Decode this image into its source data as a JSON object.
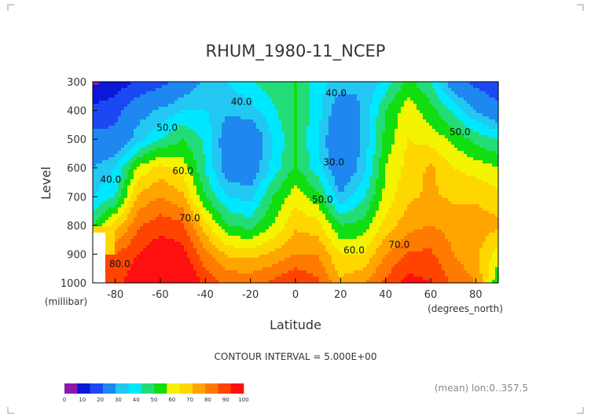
{
  "chart_data": {
    "type": "heatmap",
    "title": "RHUM_1980-11_NCEP",
    "xlabel": "Latitude",
    "xunits": "(degrees_north)",
    "ylabel": "Level",
    "yunits": "(millibar)",
    "xlim": [
      -90,
      90
    ],
    "ylim": [
      1000,
      300
    ],
    "y_axis_inverted": true,
    "xticks": [
      -80,
      -60,
      -40,
      -20,
      0,
      20,
      40,
      60,
      80
    ],
    "xtick_labels": [
      "-80",
      "-60",
      "-40",
      "-20",
      "0",
      "20",
      "40",
      "60",
      "80"
    ],
    "yticks": [
      300,
      400,
      500,
      600,
      700,
      800,
      900,
      1000
    ],
    "ytick_labels": [
      "300",
      "400",
      "500",
      "600",
      "700",
      "800",
      "900",
      "1000"
    ],
    "grid": false,
    "contour_interval_text": "CONTOUR INTERVAL = 5.000E+00",
    "footnote": "(mean) lon:0..357.5",
    "colorbar": {
      "levels": [
        0,
        10,
        20,
        30,
        40,
        50,
        60,
        70,
        80,
        90,
        100
      ],
      "level_labels": [
        "0",
        "10",
        "20",
        "30",
        "40",
        "50",
        "60",
        "70",
        "80",
        "90",
        "100"
      ],
      "colors": [
        "#8c1aa8",
        "#0a18d8",
        "#1c48f4",
        "#1e88f0",
        "#22c8f2",
        "#00e8ff",
        "#22dd77",
        "#11dd11",
        "#f4f400",
        "#ffd700",
        "#ffa500",
        "#ff7a00",
        "#ff4400",
        "#ff1010"
      ]
    },
    "field_levels": [
      5,
      10,
      15,
      20,
      25,
      30,
      35,
      40,
      45,
      50,
      55,
      60,
      65,
      70,
      75,
      80,
      85,
      90,
      95
    ],
    "field_colors": [
      "#8c1aa8",
      "#0a18d8",
      "#0a18d8",
      "#1c48f4",
      "#1c48f4",
      "#1e88f0",
      "#1e88f0",
      "#22c8f2",
      "#00e8ff",
      "#22dd77",
      "#11dd11",
      "#f4f400",
      "#ffd700",
      "#ffa500",
      "#ff7a00",
      "#ff4400",
      "#ff1010",
      "#ff1010",
      "#ff1010",
      "#ff1010"
    ],
    "x": [
      -90,
      -80,
      -70,
      -60,
      -50,
      -40,
      -30,
      -20,
      -10,
      0,
      10,
      20,
      30,
      40,
      50,
      60,
      70,
      80,
      90
    ],
    "y": [
      300,
      400,
      500,
      600,
      700,
      800,
      900,
      1000
    ],
    "z": [
      [
        3,
        8,
        18,
        22,
        30,
        36,
        40,
        44,
        48,
        50,
        42,
        38,
        35,
        42,
        52,
        45,
        30,
        22,
        18
      ],
      [
        18,
        22,
        32,
        36,
        40,
        40,
        36,
        38,
        44,
        50,
        42,
        30,
        36,
        50,
        58,
        52,
        44,
        35,
        28
      ],
      [
        28,
        28,
        38,
        45,
        50,
        44,
        30,
        28,
        40,
        50,
        40,
        26,
        36,
        52,
        60,
        58,
        54,
        48,
        45
      ],
      [
        35,
        40,
        56,
        62,
        58,
        45,
        30,
        30,
        42,
        51,
        42,
        27,
        38,
        55,
        62,
        66,
        60,
        58,
        55
      ],
      [
        40,
        45,
        66,
        70,
        66,
        50,
        40,
        38,
        50,
        58,
        52,
        36,
        44,
        57,
        64,
        66,
        64,
        64,
        62
      ],
      [
        50,
        62,
        74,
        78,
        76,
        62,
        50,
        48,
        55,
        64,
        62,
        50,
        52,
        62,
        68,
        70,
        68,
        68,
        66
      ],
      [
        null,
        75,
        80,
        84,
        82,
        72,
        64,
        63,
        66,
        70,
        70,
        60,
        60,
        70,
        76,
        76,
        70,
        66,
        58
      ],
      [
        null,
        78,
        84,
        90,
        88,
        78,
        74,
        74,
        76,
        80,
        76,
        66,
        70,
        76,
        82,
        80,
        74,
        70,
        50
      ]
    ],
    "contour_labels": [
      {
        "text": "40.0",
        "x": -24,
        "y": 370
      },
      {
        "text": "40.0",
        "x": 18,
        "y": 340
      },
      {
        "text": "50.0",
        "x": -57,
        "y": 460
      },
      {
        "text": "50.0",
        "x": 73,
        "y": 475
      },
      {
        "text": "30.0",
        "x": 17,
        "y": 580
      },
      {
        "text": "40.0",
        "x": -82,
        "y": 640
      },
      {
        "text": "60.0",
        "x": -50,
        "y": 610
      },
      {
        "text": "50.0",
        "x": 12,
        "y": 710
      },
      {
        "text": "70.0",
        "x": -47,
        "y": 775
      },
      {
        "text": "60.0",
        "x": 26,
        "y": 887
      },
      {
        "text": "70.0",
        "x": 46,
        "y": 868
      },
      {
        "text": "80.0",
        "x": -78,
        "y": 935
      }
    ]
  }
}
